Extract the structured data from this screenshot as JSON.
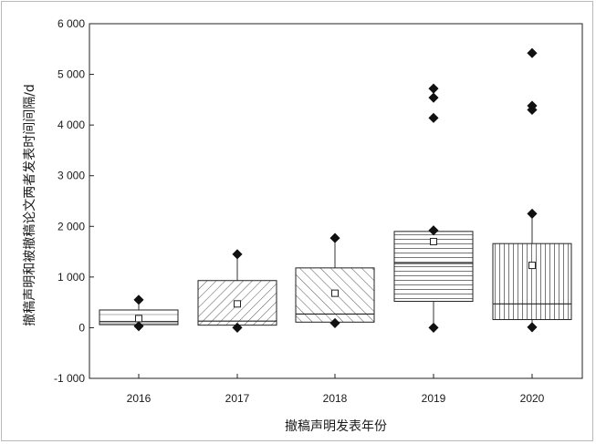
{
  "chart_data": {
    "type": "box",
    "xlabel": "撤稿声明发表年份",
    "ylabel": "撤稿声明和被撤稿论文两者发表时间间隔/d",
    "ylim": [
      -1000,
      6000
    ],
    "yticks": [
      -1000,
      0,
      1000,
      2000,
      3000,
      4000,
      5000,
      6000
    ],
    "ytick_labels": [
      "-1 000",
      "0",
      "1 000",
      "2 000",
      "3 000",
      "4 000",
      "5 000",
      "6 000"
    ],
    "categories": [
      "2016",
      "2017",
      "2018",
      "2019",
      "2020"
    ],
    "boxes": [
      {
        "year": "2016",
        "q1": 60,
        "median": 120,
        "q3": 350,
        "mean": 180,
        "whisker_low": 30,
        "whisker_high": 550,
        "fill": "hatch-horizontal-sparse",
        "outliers": []
      },
      {
        "year": "2017",
        "q1": 50,
        "median": 130,
        "q3": 930,
        "mean": 470,
        "whisker_low": 0,
        "whisker_high": 1450,
        "fill": "hatch-diagonal",
        "outliers": []
      },
      {
        "year": "2018",
        "q1": 110,
        "median": 270,
        "q3": 1180,
        "mean": 680,
        "whisker_low": 90,
        "whisker_high": 1770,
        "fill": "hatch-diagonal-back",
        "outliers": []
      },
      {
        "year": "2019",
        "q1": 520,
        "median": 1270,
        "q3": 1900,
        "mean": 1700,
        "whisker_low": 0,
        "whisker_high": 1920,
        "fill": "hatch-horizontal-dense",
        "outliers": [
          4140,
          4540,
          4720
        ]
      },
      {
        "year": "2020",
        "q1": 160,
        "median": 470,
        "q3": 1660,
        "mean": 1230,
        "whisker_low": 10,
        "whisker_high": 2250,
        "fill": "hatch-vertical",
        "outliers": [
          4300,
          4380,
          5420
        ]
      }
    ]
  }
}
